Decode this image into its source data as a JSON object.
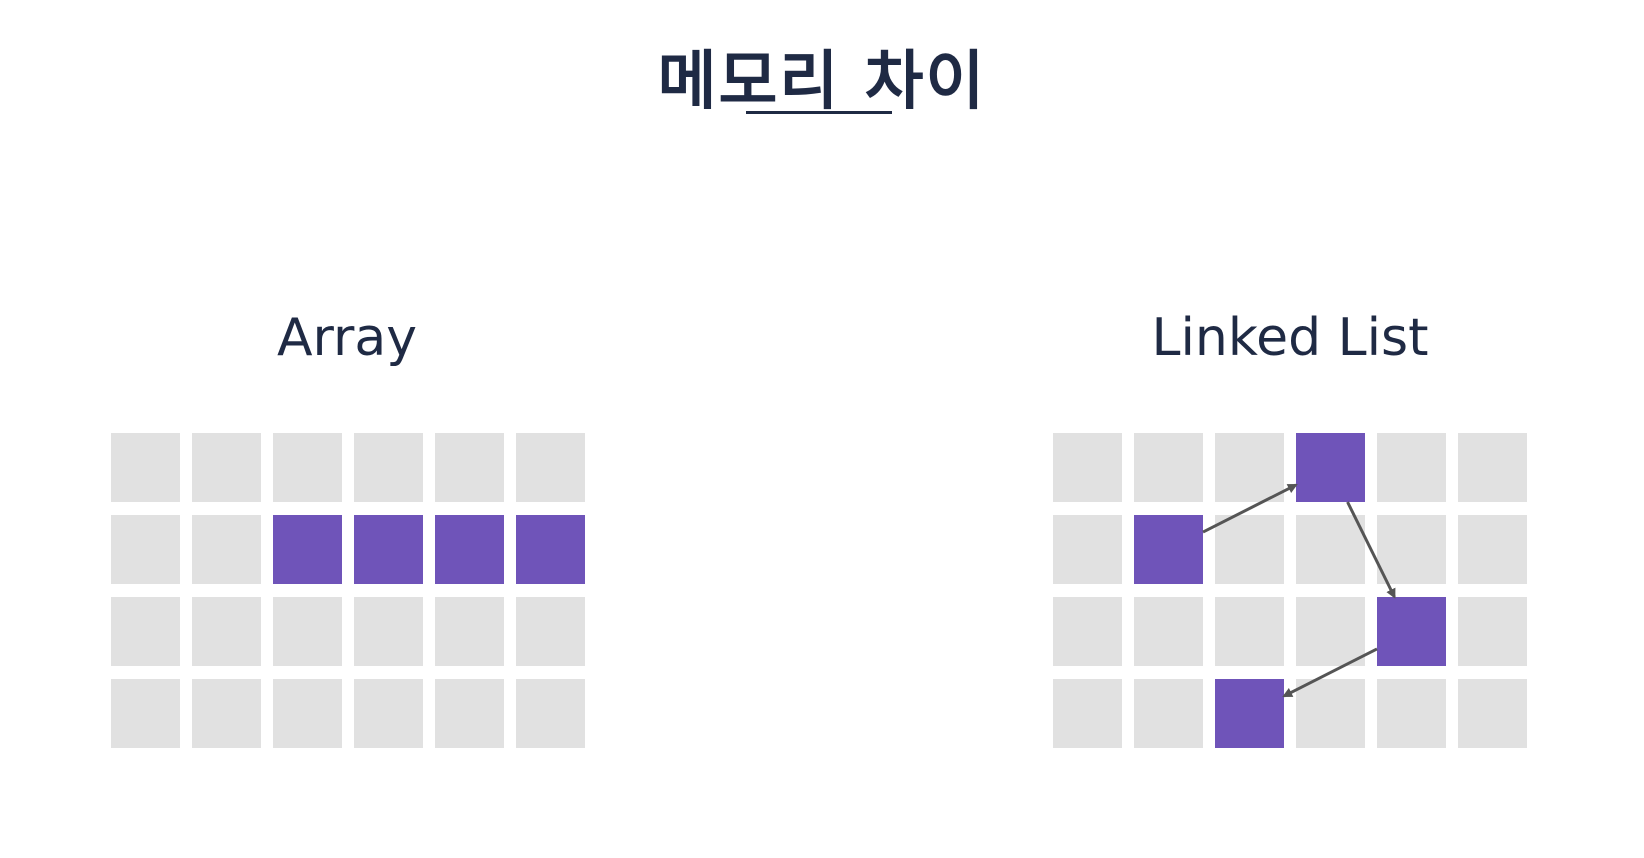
{
  "title": "메모리 차이",
  "colors": {
    "text": "#1f2a44",
    "cell_empty": "#e1e1e1",
    "cell_filled": "#6f54b9",
    "arrow": "#555555"
  },
  "panels": {
    "array": {
      "label": "Array",
      "rows": 4,
      "cols": 6,
      "filled": [
        [
          1,
          2
        ],
        [
          1,
          3
        ],
        [
          1,
          4
        ],
        [
          1,
          5
        ]
      ]
    },
    "linked_list": {
      "label": "Linked List",
      "rows": 4,
      "cols": 6,
      "filled": [
        [
          1,
          1
        ],
        [
          0,
          3
        ],
        [
          2,
          4
        ],
        [
          3,
          2
        ]
      ],
      "links": [
        [
          [
            1,
            1
          ],
          [
            0,
            3
          ]
        ],
        [
          [
            0,
            3
          ],
          [
            2,
            4
          ]
        ],
        [
          [
            2,
            4
          ],
          [
            3,
            2
          ]
        ]
      ]
    }
  }
}
